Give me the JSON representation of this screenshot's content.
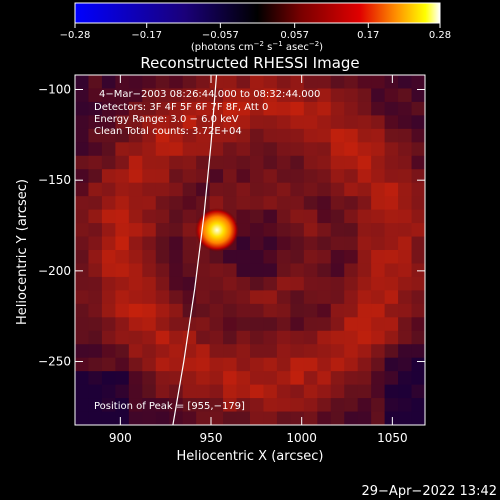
{
  "chart_data": {
    "type": "heatmap",
    "title": "Reconstructed RHESSI Image",
    "xlabel": "Heliocentric X (arcsec)",
    "ylabel": "Heliocentric Y (arcsec)",
    "xlim": [
      875,
      1068
    ],
    "ylim": [
      -285,
      -92
    ],
    "x_ticks": [
      900,
      950,
      1000,
      1050
    ],
    "x_tick_labels": [
      "900",
      "950",
      "1000",
      "1050"
    ],
    "y_ticks": [
      -100,
      -150,
      -200,
      -250
    ],
    "y_tick_labels": [
      "−100",
      "−150",
      "−200",
      "−250"
    ],
    "colorbar": {
      "range": [
        -0.28,
        0.28
      ],
      "ticks": [
        -0.28,
        -0.17,
        -0.057,
        0.057,
        0.17,
        0.28
      ],
      "tick_labels": [
        "−0.28",
        "−0.17",
        "−0.057",
        "0.057",
        "0.17",
        "0.28"
      ],
      "colormap_stops": [
        "#0000ff",
        "#1a007a",
        "#000000",
        "#7a0000",
        "#e00000",
        "#ff9000",
        "#ffff00",
        "#ffffff"
      ]
    },
    "peak_position": [
      955,
      -179
    ],
    "limb_curve": [
      [
        929,
        -285
      ],
      [
        935,
        -250
      ],
      [
        941,
        -210
      ],
      [
        946,
        -170
      ],
      [
        950,
        -130
      ],
      [
        953,
        -92
      ]
    ],
    "annotations": [
      "4−Mar−2003 08:26:44.000  to 08:32:44.000",
      "Detectors: 3F 4F 5F 6F 7F 8F, Att 0",
      "Energy Range: 3.0 − 6.0 keV",
      "Clean    Total counts: 3.72E+04",
      "Position of Peak = [955,−179]"
    ]
  },
  "units": {
    "prefix": "(photons cm",
    "exp1": "−2",
    "mid1": " s",
    "exp2": "−1",
    "mid2": " asec",
    "exp3": "−2",
    "suffix": ")"
  },
  "timestamp": "29−Apr−2022 13:42"
}
